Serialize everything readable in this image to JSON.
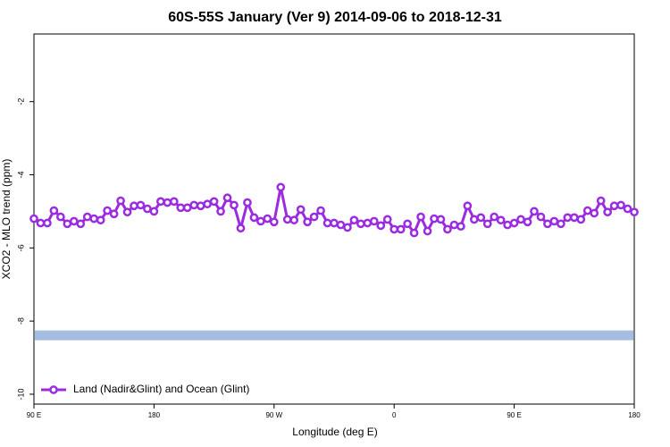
{
  "chart_data": {
    "type": "line",
    "title": "60S-55S January (Ver 9)   2014-09-06 to 2018-12-31",
    "x_label": "Longitude (deg E)",
    "y_label": "XCO2 - MLO trend (ppm)",
    "xlim": [
      90,
      540
    ],
    "xticks": [
      {
        "value": 90,
        "label": "90 E"
      },
      180,
      {
        "value": 270,
        "label": "90 W"
      },
      {
        "value": 360,
        "label": "0"
      },
      {
        "value": 450,
        "label": "90 E"
      },
      {
        "value": 540,
        "label": "180"
      }
    ],
    "ylim": [
      -10.27,
      -0.15
    ],
    "yticks": [
      -2,
      -4,
      -6,
      -8,
      -10
    ],
    "legend": "bottom-left",
    "reference_line": {
      "value": -8.39,
      "color": "#a5bde0"
    },
    "x": [
      90,
      95,
      100,
      105,
      110,
      115,
      120,
      125,
      130,
      135,
      140,
      145,
      150,
      155,
      160,
      165,
      170,
      175,
      180,
      185,
      190,
      195,
      200,
      205,
      210,
      215,
      220,
      225,
      230,
      235,
      240,
      245,
      250,
      255,
      260,
      265,
      270,
      275,
      280,
      285,
      290,
      295,
      300,
      305,
      310,
      315,
      320,
      325,
      330,
      335,
      340,
      345,
      350,
      355,
      360,
      365,
      370,
      375,
      380,
      385,
      390,
      395,
      400,
      405,
      410,
      415,
      420,
      425,
      430,
      435,
      440,
      445,
      450,
      455,
      460,
      465,
      470,
      475,
      480,
      485,
      490,
      495,
      500,
      505,
      510,
      515,
      520,
      525,
      530,
      535,
      540
    ],
    "series": [
      {
        "name": "Land (Nadir&Glint) and Ocean (Glint)",
        "color": "#9b2be0",
        "values": [
          -5.2,
          -5.32,
          -5.32,
          -4.98,
          -5.15,
          -5.34,
          -5.27,
          -5.34,
          -5.15,
          -5.2,
          -5.24,
          -4.98,
          -5.07,
          -4.71,
          -5.02,
          -4.85,
          -4.83,
          -4.93,
          -5.0,
          -4.73,
          -4.76,
          -4.73,
          -4.9,
          -4.9,
          -4.83,
          -4.85,
          -4.8,
          -4.73,
          -5.0,
          -4.63,
          -4.83,
          -5.46,
          -4.76,
          -5.17,
          -5.27,
          -5.2,
          -5.29,
          -4.34,
          -5.22,
          -5.24,
          -4.95,
          -5.29,
          -5.15,
          -4.98,
          -5.32,
          -5.32,
          -5.37,
          -5.44,
          -5.24,
          -5.34,
          -5.32,
          -5.27,
          -5.39,
          -5.22,
          -5.49,
          -5.49,
          -5.34,
          -5.59,
          -5.15,
          -5.54,
          -5.2,
          -5.22,
          -5.49,
          -5.37,
          -5.41,
          -4.85,
          -5.22,
          -5.17,
          -5.34,
          -5.15,
          -5.24,
          -5.37,
          -5.32,
          -5.22,
          -5.29,
          -5.0,
          -5.15,
          -5.34,
          -5.27,
          -5.34,
          -5.17,
          -5.17,
          -5.22,
          -4.98,
          -5.05,
          -4.71,
          -5.02,
          -4.85,
          -4.83,
          -4.93,
          -5.02
        ]
      }
    ]
  }
}
